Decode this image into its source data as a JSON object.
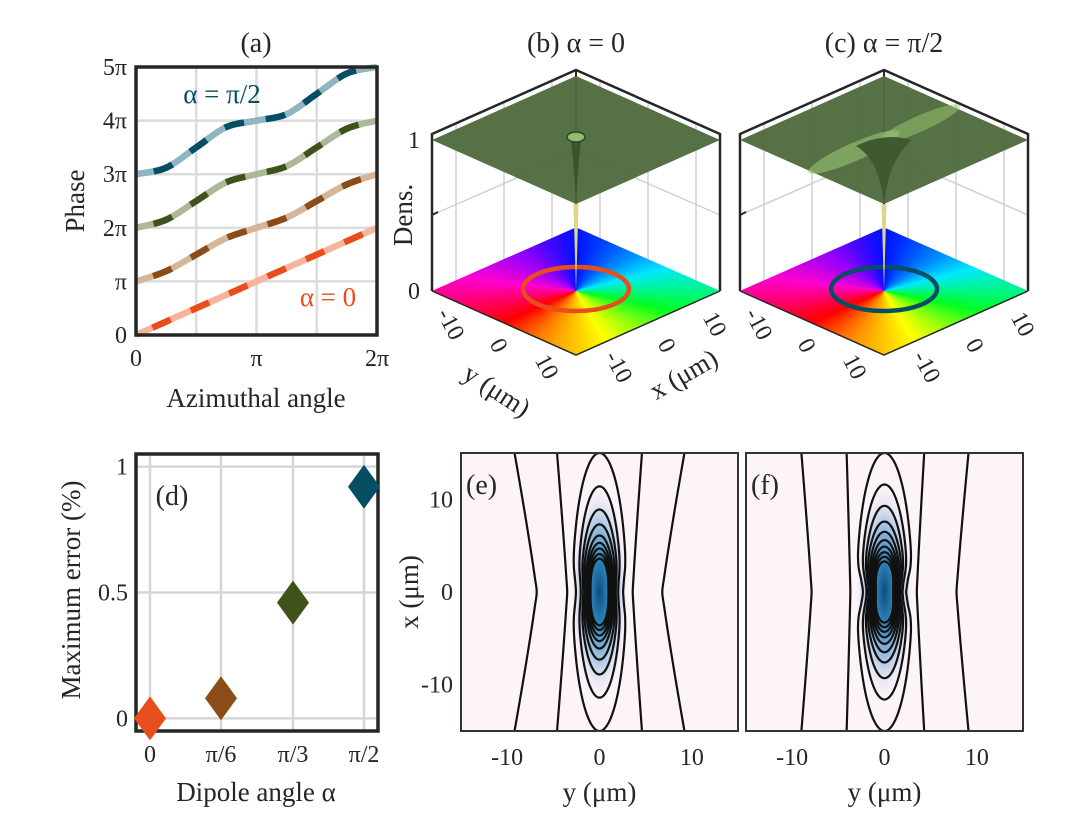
{
  "chart_data": [
    {
      "panel": "(a)",
      "type": "line",
      "title": "(a)",
      "xlabel": "Azimuthal angle",
      "ylabel": "Phase",
      "unit": "π",
      "xlim": [
        0,
        2
      ],
      "ylim": [
        0,
        5
      ],
      "xticks": [
        "0",
        "π",
        "2π"
      ],
      "xtick_values": [
        0,
        1,
        2
      ],
      "yticks": [
        "0",
        "π",
        "2π",
        "3π",
        "4π",
        "5π"
      ],
      "ytick_values": [
        0,
        1,
        2,
        3,
        4,
        5
      ],
      "grid": true,
      "x": [
        0,
        0.25,
        0.5,
        0.75,
        1,
        1.25,
        1.5,
        1.75,
        2
      ],
      "series": [
        {
          "name": "α = 0",
          "color": "#e84e1b",
          "light_color": "#f7b49c",
          "y": [
            0,
            0.25,
            0.5,
            0.75,
            1,
            1.25,
            1.5,
            1.75,
            2
          ]
        },
        {
          "color": "#8b4c17",
          "light_color": "#d6b69b",
          "y": [
            1,
            1.19,
            1.5,
            1.81,
            2,
            2.19,
            2.5,
            2.81,
            3
          ]
        },
        {
          "color": "#3f5219",
          "light_color": "#acb898",
          "y": [
            2,
            2.15,
            2.5,
            2.85,
            3,
            3.15,
            3.5,
            3.85,
            4
          ]
        },
        {
          "name": "α = π/2",
          "color": "#054e63",
          "light_color": "#8fb5c1",
          "y": [
            3,
            3.12,
            3.5,
            3.88,
            4,
            4.12,
            4.5,
            4.88,
            5
          ]
        }
      ],
      "annotations": [
        "α = π/2",
        "α = 0"
      ]
    },
    {
      "panel": "(b)",
      "type": "surface",
      "title": "(b) α = 0",
      "zlabel": "Dens.",
      "zticks": [
        "0",
        "1"
      ],
      "xlabel": "x (μm)",
      "ylabel": "y (μm)",
      "xticks": [
        "-10",
        "0",
        "10"
      ],
      "yticks": [
        "-10",
        "0",
        "10"
      ],
      "surface_color": "#4f6b3d",
      "ring_color": "#e84e1b"
    },
    {
      "panel": "(c)",
      "type": "surface",
      "title": "(c) α = π/2",
      "xticks": [
        "-10",
        "0",
        "10"
      ],
      "yticks": [
        "-10",
        "0",
        "10"
      ],
      "surface_color": "#4f6b3d",
      "ring_color": "#054e63"
    },
    {
      "panel": "(d)",
      "type": "scatter",
      "title": "(d)",
      "xlabel": "Dipole angle α",
      "ylabel": "Maximum error (%)",
      "categories": [
        "0",
        "π/6",
        "π/3",
        "π/2"
      ],
      "values": [
        0.0,
        0.08,
        0.46,
        0.92
      ],
      "colors": [
        "#e84e1b",
        "#8b4c17",
        "#3f5219",
        "#054e63"
      ],
      "marker": "diamond",
      "ylim": [
        -0.05,
        1.05
      ],
      "yticks": [
        "0",
        "0.5",
        "1"
      ],
      "ytick_values": [
        0,
        0.5,
        1
      ],
      "grid": true
    },
    {
      "panel": "(e)",
      "type": "contour",
      "title": "(e)",
      "xlabel": "y (μm)",
      "ylabel": "x (μm)",
      "xlim": [
        -15,
        15
      ],
      "ylim": [
        -15,
        15
      ],
      "xticks": [
        "-10",
        "0",
        "10"
      ],
      "xtick_values": [
        -10,
        0,
        10
      ],
      "yticks": [
        "10",
        "0",
        "-10"
      ],
      "ytick_values": [
        10,
        0,
        -10
      ],
      "colormap": [
        "#fdf4f8",
        "#b8cde6",
        "#2f86bd",
        "#0b4f7c"
      ]
    },
    {
      "panel": "(f)",
      "type": "contour",
      "title": "(f)",
      "xlabel": "y (μm)",
      "xlim": [
        -15,
        15
      ],
      "ylim": [
        -15,
        15
      ],
      "xticks": [
        "-10",
        "0",
        "10"
      ],
      "xtick_values": [
        -10,
        0,
        10
      ],
      "colormap": [
        "#fdf4f8",
        "#b8cde6",
        "#2f86bd",
        "#0b4f7c"
      ]
    }
  ]
}
